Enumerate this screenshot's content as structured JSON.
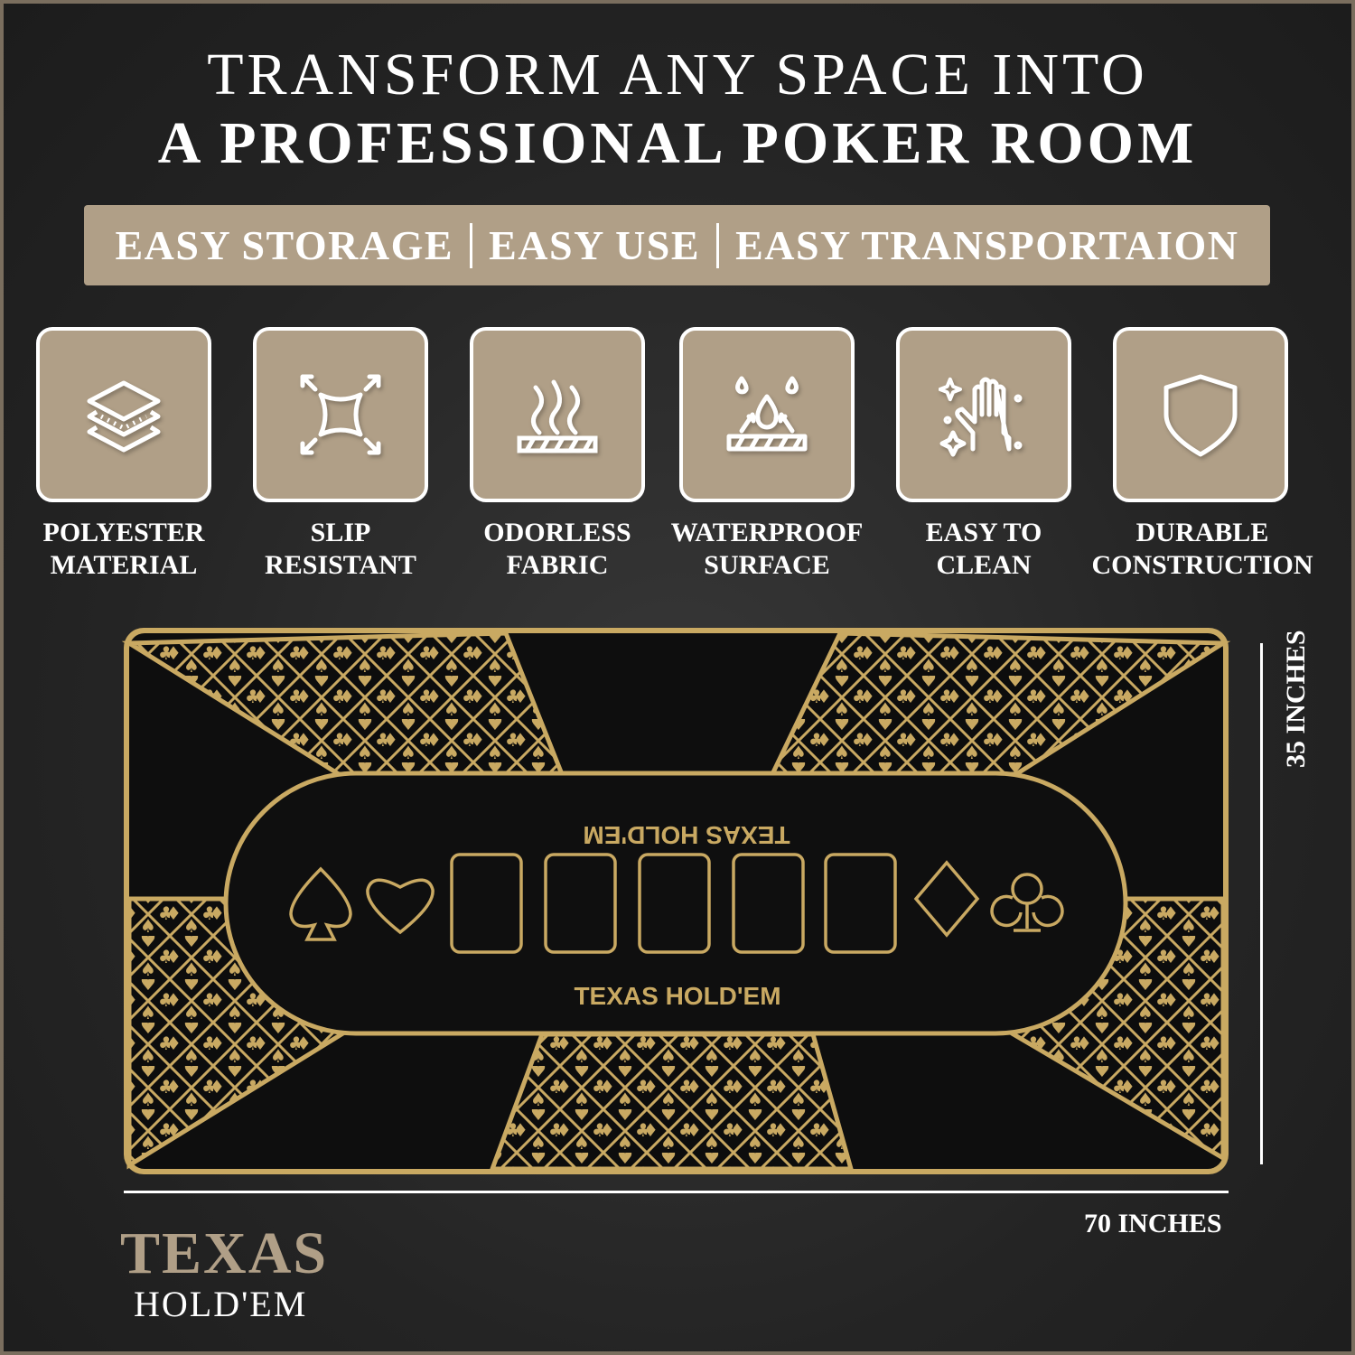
{
  "headline": {
    "line1": "TRANSFORM ANY SPACE INTO",
    "line2": "A PROFESSIONAL POKER ROOM"
  },
  "banner": {
    "items": [
      "EASY STORAGE",
      "EASY USE",
      "EASY TRANSPORTAION"
    ]
  },
  "features": [
    {
      "icon": "layers-icon",
      "line1": "POLYESTER",
      "line2": "MATERIAL"
    },
    {
      "icon": "stretch-arrows-icon",
      "line1": "SLIP",
      "line2": "RESISTANT"
    },
    {
      "icon": "odor-waves-icon",
      "line1": "ODORLESS",
      "line2": "FABRIC"
    },
    {
      "icon": "water-drops-icon",
      "line1": "WATERPROOF",
      "line2": "SURFACE"
    },
    {
      "icon": "clean-hand-icon",
      "line1": "EASY TO",
      "line2": "CLEAN"
    },
    {
      "icon": "shield-icon",
      "line1": "DURABLE",
      "line2": "CONSTRUCTION"
    }
  ],
  "mat": {
    "label_top": "TEXAS HOLD'EM",
    "label_bottom": "TEXAS HOLD'EM",
    "card_slots": 5
  },
  "dimensions": {
    "height": "35 INCHES",
    "width": "70 INCHES"
  },
  "logo": {
    "line1": "TEXAS",
    "line2": "HOLD'EM"
  },
  "colors": {
    "tile": "#b09f87",
    "gold": "#c9a962",
    "background": "#2a2a2a"
  }
}
